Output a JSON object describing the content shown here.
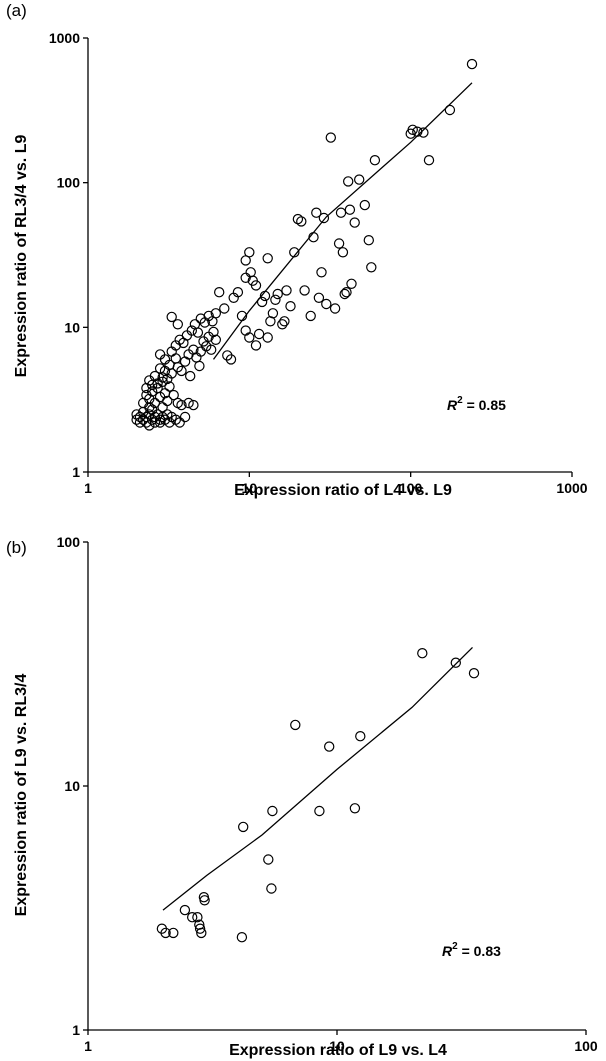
{
  "chart_data": [
    {
      "panel": "(a)",
      "type": "scatter",
      "title": "",
      "xlabel": "Expression ratio of L4 vs. L9",
      "ylabel": "Expression ratio of RL3/4 vs. L9",
      "x_scale": "log",
      "y_scale": "log",
      "xlim": [
        1,
        1000
      ],
      "ylim": [
        1,
        1000
      ],
      "x_ticks": [
        "1",
        "10",
        "100",
        "1000"
      ],
      "y_ticks": [
        "1",
        "10",
        "100",
        "1000"
      ],
      "grid": false,
      "legend": "none",
      "annotation": {
        "prefix": "R",
        "superscript": "2",
        "value": " = 0.85"
      },
      "fit_line": [
        [
          6.0,
          6.0
        ],
        [
          10,
          13
        ],
        [
          30,
          58
        ],
        [
          100,
          190
        ],
        [
          240,
          490
        ]
      ],
      "points": [
        [
          2.0,
          2.3
        ],
        [
          2.0,
          2.5
        ],
        [
          2.1,
          2.2
        ],
        [
          2.1,
          2.4
        ],
        [
          2.2,
          2.3
        ],
        [
          2.2,
          2.6
        ],
        [
          2.3,
          2.2
        ],
        [
          2.3,
          2.4
        ],
        [
          2.4,
          2.1
        ],
        [
          2.4,
          2.5
        ],
        [
          2.5,
          2.3
        ],
        [
          2.5,
          2.7
        ],
        [
          2.6,
          2.2
        ],
        [
          2.6,
          2.4
        ],
        [
          2.7,
          2.5
        ],
        [
          2.8,
          2.3
        ],
        [
          2.8,
          2.2
        ],
        [
          2.9,
          2.4
        ],
        [
          3.0,
          2.3
        ],
        [
          3.1,
          2.5
        ],
        [
          3.2,
          2.2
        ],
        [
          3.3,
          2.4
        ],
        [
          3.5,
          2.3
        ],
        [
          3.7,
          2.2
        ],
        [
          4.0,
          2.4
        ],
        [
          2.2,
          3.0
        ],
        [
          2.3,
          3.4
        ],
        [
          2.4,
          3.2
        ],
        [
          2.5,
          3.6
        ],
        [
          2.6,
          3.0
        ],
        [
          2.7,
          3.8
        ],
        [
          2.8,
          3.3
        ],
        [
          2.9,
          4.2
        ],
        [
          3.0,
          3.5
        ],
        [
          3.1,
          3.1
        ],
        [
          3.2,
          3.9
        ],
        [
          3.4,
          3.4
        ],
        [
          3.6,
          3.0
        ],
        [
          3.8,
          2.9
        ],
        [
          4.2,
          3.0
        ],
        [
          4.5,
          2.9
        ],
        [
          2.3,
          3.8
        ],
        [
          2.4,
          4.3
        ],
        [
          2.5,
          4.0
        ],
        [
          2.6,
          4.6
        ],
        [
          2.7,
          4.1
        ],
        [
          2.8,
          5.2
        ],
        [
          2.9,
          4.5
        ],
        [
          3.0,
          5.0
        ],
        [
          3.1,
          4.4
        ],
        [
          3.2,
          5.5
        ],
        [
          3.3,
          4.8
        ],
        [
          3.5,
          6.1
        ],
        [
          3.6,
          5.3
        ],
        [
          3.8,
          5.0
        ],
        [
          4.0,
          5.8
        ],
        [
          4.2,
          6.5
        ],
        [
          4.3,
          4.6
        ],
        [
          4.5,
          7.0
        ],
        [
          4.7,
          6.2
        ],
        [
          4.9,
          5.4
        ],
        [
          5.0,
          6.8
        ],
        [
          5.2,
          8.0
        ],
        [
          5.4,
          7.4
        ],
        [
          5.6,
          8.6
        ],
        [
          5.8,
          7.0
        ],
        [
          6.0,
          9.3
        ],
        [
          6.2,
          8.2
        ],
        [
          2.8,
          6.5
        ],
        [
          3.0,
          6.0
        ],
        [
          3.3,
          6.8
        ],
        [
          3.5,
          7.5
        ],
        [
          3.7,
          8.2
        ],
        [
          3.9,
          7.8
        ],
        [
          4.1,
          8.8
        ],
        [
          4.4,
          9.5
        ],
        [
          4.6,
          10.5
        ],
        [
          4.8,
          9.2
        ],
        [
          5.0,
          11.5
        ],
        [
          5.3,
          10.8
        ],
        [
          5.6,
          12.0
        ],
        [
          5.9,
          11.0
        ],
        [
          6.2,
          12.5
        ],
        [
          3.3,
          11.8
        ],
        [
          3.6,
          10.5
        ],
        [
          6.5,
          17.5
        ],
        [
          7.0,
          13.5
        ],
        [
          7.3,
          6.4
        ],
        [
          7.7,
          6.0
        ],
        [
          8.0,
          16.0
        ],
        [
          8.5,
          17.5
        ],
        [
          9.0,
          12.0
        ],
        [
          9.5,
          9.5
        ],
        [
          10.0,
          8.5
        ],
        [
          10.5,
          21.0
        ],
        [
          11.0,
          19.5
        ],
        [
          9.5,
          22.0
        ],
        [
          10.2,
          24.0
        ],
        [
          10.0,
          33.0
        ],
        [
          9.5,
          29.0
        ],
        [
          11.0,
          7.5
        ],
        [
          11.5,
          9.0
        ],
        [
          12.0,
          15.0
        ],
        [
          12.5,
          16.5
        ],
        [
          13.0,
          8.5
        ],
        [
          13.5,
          11.0
        ],
        [
          14.0,
          12.5
        ],
        [
          14.5,
          15.5
        ],
        [
          15.0,
          17.0
        ],
        [
          16.0,
          10.5
        ],
        [
          16.5,
          11.0
        ],
        [
          17.0,
          18.0
        ],
        [
          18.0,
          14.0
        ],
        [
          19.0,
          33.0
        ],
        [
          20.0,
          56.0
        ],
        [
          21.0,
          54.0
        ],
        [
          22.0,
          18.0
        ],
        [
          24.0,
          12.0
        ],
        [
          25.0,
          42.0
        ],
        [
          26.0,
          62.0
        ],
        [
          27.0,
          16.0
        ],
        [
          28.0,
          24.0
        ],
        [
          29.0,
          57.0
        ],
        [
          30.0,
          14.5
        ],
        [
          32.0,
          205.0
        ],
        [
          13.0,
          30.0
        ],
        [
          34.0,
          13.5
        ],
        [
          36.0,
          38.0
        ],
        [
          37.0,
          62.0
        ],
        [
          38.0,
          33.0
        ],
        [
          39.0,
          17.0
        ],
        [
          40.0,
          17.5
        ],
        [
          41.0,
          102.0
        ],
        [
          42.0,
          65.0
        ],
        [
          43.0,
          20.0
        ],
        [
          45.0,
          53.0
        ],
        [
          48.0,
          105.0
        ],
        [
          52.0,
          70.0
        ],
        [
          55.0,
          40.0
        ],
        [
          57.0,
          26.0
        ],
        [
          60.0,
          143.0
        ],
        [
          100.0,
          218.0
        ],
        [
          103.0,
          232.0
        ],
        [
          110.0,
          225.0
        ],
        [
          120.0,
          222.0
        ],
        [
          130.0,
          143.0
        ],
        [
          175.0,
          318.0
        ],
        [
          240.0,
          660.0
        ],
        [
          2.4,
          2.8
        ],
        [
          2.9,
          2.8
        ]
      ]
    },
    {
      "panel": "(b)",
      "type": "scatter",
      "title": "",
      "xlabel": "Expression ratio of L9 vs. L4",
      "ylabel": "Expression ratio of L9 vs. RL3/4",
      "x_scale": "log",
      "y_scale": "log",
      "xlim": [
        1,
        100
      ],
      "ylim": [
        1,
        100
      ],
      "x_ticks": [
        "1",
        "10",
        "100"
      ],
      "y_ticks": [
        "1",
        "10",
        "100"
      ],
      "grid": false,
      "legend": "none",
      "annotation": {
        "prefix": "R",
        "superscript": "2",
        "value": " = 0.83"
      },
      "fit_line": [
        [
          2.0,
          3.1
        ],
        [
          3.0,
          4.3
        ],
        [
          5.0,
          6.3
        ],
        [
          10.0,
          11.7
        ],
        [
          20.0,
          21.0
        ],
        [
          35.0,
          37.0
        ]
      ],
      "points": [
        [
          1.98,
          2.6
        ],
        [
          2.05,
          2.5
        ],
        [
          2.2,
          2.5
        ],
        [
          2.45,
          3.1
        ],
        [
          2.62,
          2.9
        ],
        [
          2.75,
          2.9
        ],
        [
          2.8,
          2.7
        ],
        [
          2.82,
          2.6
        ],
        [
          2.85,
          2.5
        ],
        [
          2.92,
          3.5
        ],
        [
          2.94,
          3.4
        ],
        [
          4.15,
          2.4
        ],
        [
          4.2,
          6.8
        ],
        [
          5.3,
          5.0
        ],
        [
          5.45,
          3.8
        ],
        [
          5.5,
          7.9
        ],
        [
          6.8,
          17.8
        ],
        [
          8.5,
          7.9
        ],
        [
          9.3,
          14.5
        ],
        [
          11.8,
          8.1
        ],
        [
          12.4,
          16.0
        ],
        [
          22.0,
          35.0
        ],
        [
          30.0,
          32.0
        ],
        [
          35.5,
          29.0
        ]
      ]
    }
  ]
}
